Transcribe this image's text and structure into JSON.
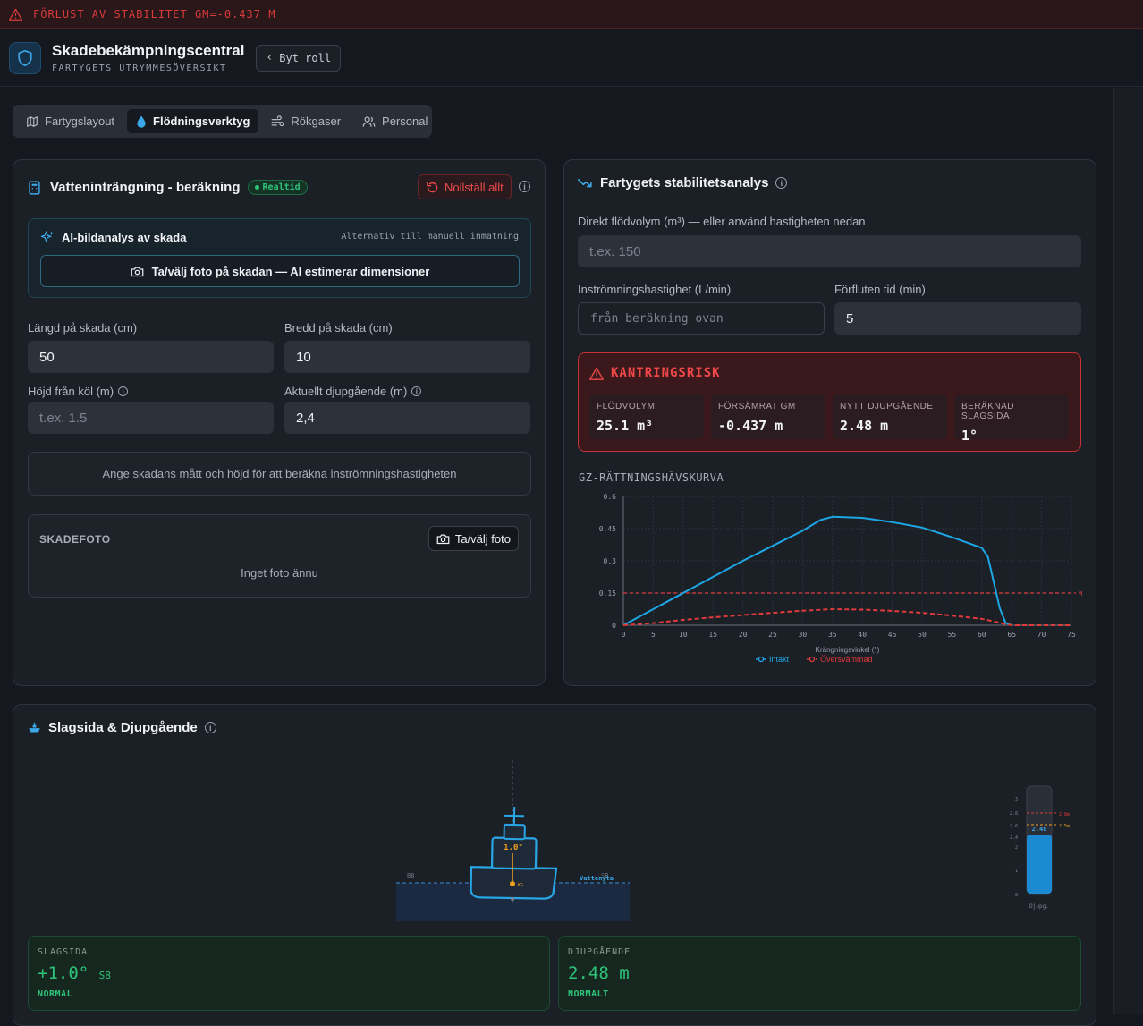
{
  "alert": {
    "text": "FÖRLUST AV STABILITET GM=-0.437 M"
  },
  "header": {
    "title": "Skadebekämpningscentral",
    "subtitle": "FARTYGETS UTRYMMESÖVERSIKT",
    "role_button": "Byt roll"
  },
  "tabs": [
    {
      "label": "Fartygslayout",
      "icon": "map-icon"
    },
    {
      "label": "Flödningsverktyg",
      "icon": "droplet-icon",
      "active": true
    },
    {
      "label": "Rökgaser",
      "icon": "wind-icon"
    },
    {
      "label": "Personal",
      "icon": "users-icon"
    }
  ],
  "ingress": {
    "title": "Vatteninträngning - beräkning",
    "badge": "Realtid",
    "reset": "Nollställ allt",
    "ai_title": "AI-bildanalys av skada",
    "ai_note": "Alternativ till manuell inmatning",
    "ai_button": "Ta/välj foto på skadan — AI estimerar dimensioner",
    "length_label": "Längd på skada (cm)",
    "length_value": "50",
    "width_label": "Bredd på skada (cm)",
    "width_value": "10",
    "height_label": "Höjd från köl (m)",
    "height_placeholder": "t.ex. 1.5",
    "draft_label": "Aktuellt djupgående (m)",
    "draft_value": "2,4",
    "hint": "Ange skadans mått och höjd för att beräkna inströmningshastigheten",
    "photo_title": "SKADEFOTO",
    "photo_button": "Ta/välj foto",
    "photo_empty": "Inget foto ännu"
  },
  "stability": {
    "title": "Fartygets stabilitetsanalys",
    "volume_label": "Direkt flödvolym (m³) — eller använd hastigheten nedan",
    "volume_placeholder": "t.ex. 150",
    "rate_label": "Inströmningshastighet (L/min)",
    "rate_placeholder": "från beräkning ovan",
    "time_label": "Förfluten tid (min)",
    "time_value": "5",
    "risk_title": "KANTRINGSRISK",
    "stats": [
      {
        "label": "FLÖDVOLYM",
        "value": "25.1 m³"
      },
      {
        "label": "FÖRSÄMRAT GM",
        "value": "-0.437 m"
      },
      {
        "label": "NYTT DJUPGÅENDE",
        "value": "2.48 m"
      },
      {
        "label": "BERÄKNAD SLAGSIDA",
        "value": "1°"
      }
    ],
    "gz_title": "GZ-RÄTTNINGSHÄVSKURVA"
  },
  "chart_data": {
    "type": "line",
    "title": "GZ-RÄTTNINGSHÄVSKURVA",
    "xlabel": "Krängningsvinkel (°)",
    "ylabel": "",
    "xlim": [
      0,
      75
    ],
    "ylim": [
      0,
      0.6
    ],
    "x_ticks": [
      0,
      5,
      10,
      15,
      20,
      25,
      30,
      35,
      40,
      45,
      50,
      55,
      60,
      65,
      70,
      75
    ],
    "y_ticks": [
      0,
      0.15,
      0.3,
      0.45,
      0.6
    ],
    "y_tick_labels": [
      "0",
      "0.15",
      "0.3",
      "0.45",
      "0.6"
    ],
    "grid": true,
    "legend": "bottom",
    "threshold": {
      "value": 0.15,
      "label": "M",
      "color": "#e03a3a"
    },
    "series": [
      {
        "name": "Intakt",
        "color": "#1ea7e6",
        "dash": false,
        "x": [
          0,
          5,
          10,
          15,
          20,
          25,
          30,
          33,
          35,
          40,
          45,
          50,
          55,
          60,
          61,
          62,
          63,
          64,
          65
        ],
        "y": [
          0,
          0.075,
          0.15,
          0.225,
          0.3,
          0.37,
          0.44,
          0.49,
          0.505,
          0.5,
          0.48,
          0.455,
          0.41,
          0.36,
          0.32,
          0.2,
          0.08,
          0.01,
          0
        ]
      },
      {
        "name": "Översvämmad",
        "color": "#e03a3a",
        "dash": true,
        "x": [
          0,
          5,
          10,
          15,
          20,
          25,
          30,
          35,
          40,
          45,
          50,
          55,
          60,
          62,
          64,
          65,
          70,
          75
        ],
        "y": [
          0,
          0.01,
          0.025,
          0.037,
          0.048,
          0.058,
          0.068,
          0.075,
          0.073,
          0.067,
          0.058,
          0.045,
          0.03,
          0.018,
          0.005,
          0,
          0,
          0
        ]
      }
    ]
  },
  "list_section": {
    "title": "Slagsida & Djupgående",
    "heel_angle": "1.0°",
    "port_label": "BB",
    "stbd_label": "SB",
    "waterline_label": "Vattenyta",
    "cg_label": "KG",
    "gauge_ticks": [
      "3",
      "2.8",
      "2.6",
      "2.4",
      "2",
      "1",
      "0"
    ],
    "gauge_value": "2.48",
    "gauge_limit_red": "2.8m",
    "gauge_limit_orange": "2.5m",
    "gauge_caption": "Djupg.",
    "heel_card": {
      "label": "SLAGSIDA",
      "value": "+1.0°",
      "unit": "SB",
      "status": "NORMAL"
    },
    "draft_card": {
      "label": "DJUPGÅENDE",
      "value": "2.48 m",
      "status": "NORMALT"
    }
  }
}
